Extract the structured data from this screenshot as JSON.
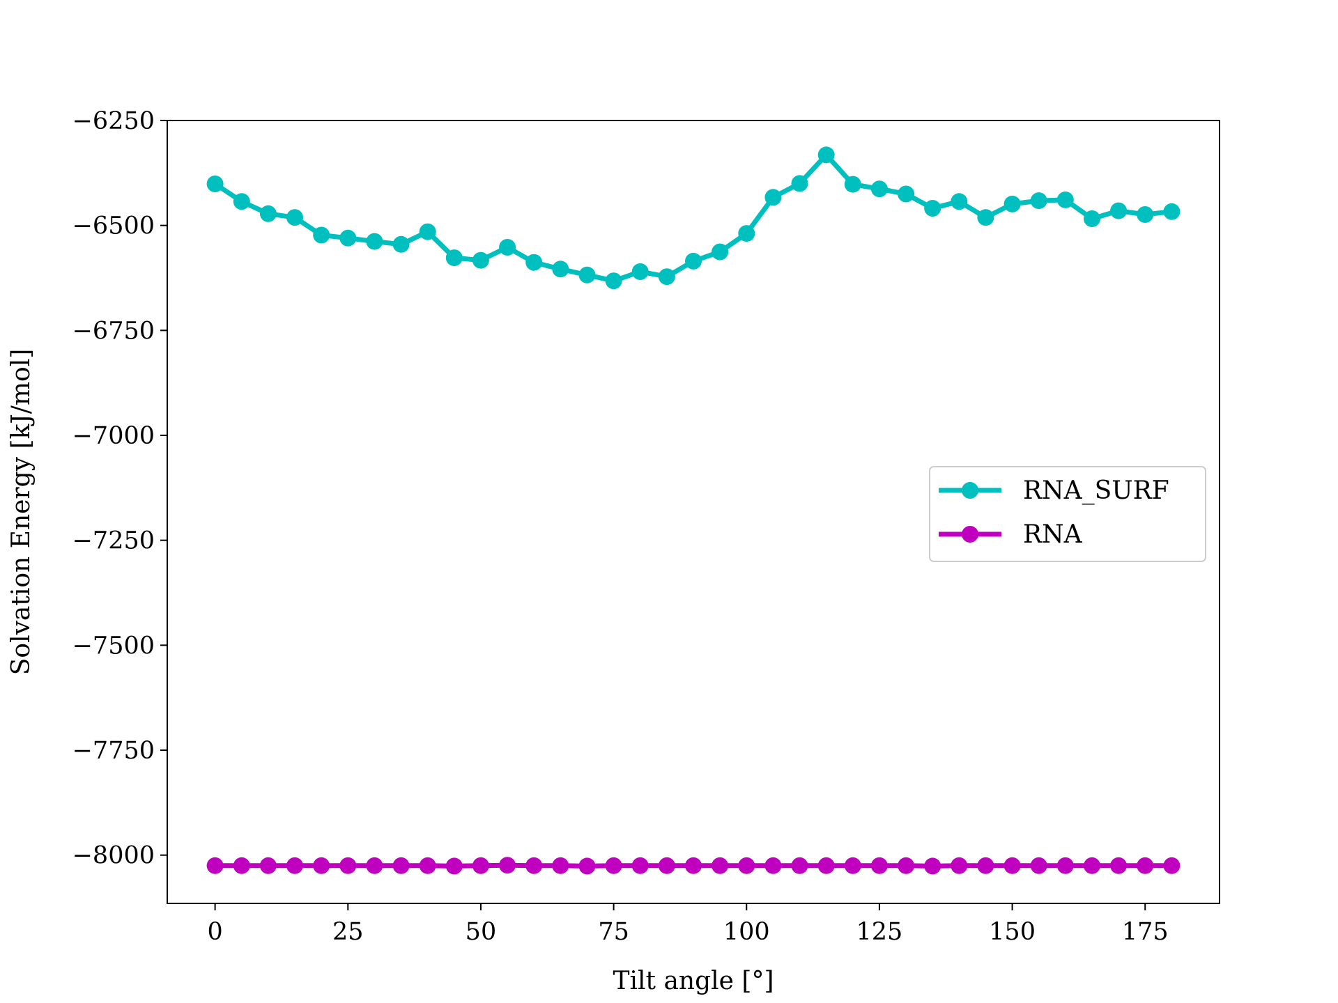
{
  "chart_data": {
    "type": "line",
    "title": "",
    "xlabel": "Tilt angle [°]",
    "ylabel": "Solvation Energy [kJ/mol]",
    "xlim": [
      -9,
      189
    ],
    "ylim": [
      -8115,
      -6250
    ],
    "xticks": [
      0,
      25,
      50,
      75,
      100,
      125,
      150,
      175
    ],
    "yticks": [
      -6250,
      -6500,
      -6750,
      -7000,
      -7250,
      -7500,
      -7750,
      -8000
    ],
    "x": [
      0,
      5,
      10,
      15,
      20,
      25,
      30,
      35,
      40,
      45,
      50,
      55,
      60,
      65,
      70,
      75,
      80,
      85,
      90,
      95,
      100,
      105,
      110,
      115,
      120,
      125,
      130,
      135,
      140,
      145,
      150,
      155,
      160,
      165,
      170,
      175,
      180
    ],
    "series": [
      {
        "name": "RNA_SURF",
        "color": "#00bfbf",
        "values": [
          -6401,
          -6443,
          -6472,
          -6481,
          -6523,
          -6530,
          -6538,
          -6545,
          -6515,
          -6577,
          -6583,
          -6552,
          -6588,
          -6604,
          -6618,
          -6632,
          -6610,
          -6622,
          -6585,
          -6563,
          -6519,
          -6433,
          -6400,
          -6332,
          -6402,
          -6413,
          -6425,
          -6459,
          -6443,
          -6481,
          -6449,
          -6441,
          -6439,
          -6484,
          -6465,
          -6474,
          -6467
        ]
      },
      {
        "name": "RNA",
        "color": "#bf00bf",
        "values": [
          -8025,
          -8025,
          -8025,
          -8025,
          -8025,
          -8025,
          -8025,
          -8025,
          -8025,
          -8026,
          -8025,
          -8024,
          -8025,
          -8025,
          -8026,
          -8025,
          -8025,
          -8025,
          -8025,
          -8025,
          -8025,
          -8025,
          -8025,
          -8025,
          -8025,
          -8025,
          -8025,
          -8026,
          -8025,
          -8025,
          -8025,
          -8025,
          -8025,
          -8025,
          -8025,
          -8025,
          -8025
        ]
      }
    ],
    "legend": {
      "position": "center-right"
    },
    "grid": false
  }
}
